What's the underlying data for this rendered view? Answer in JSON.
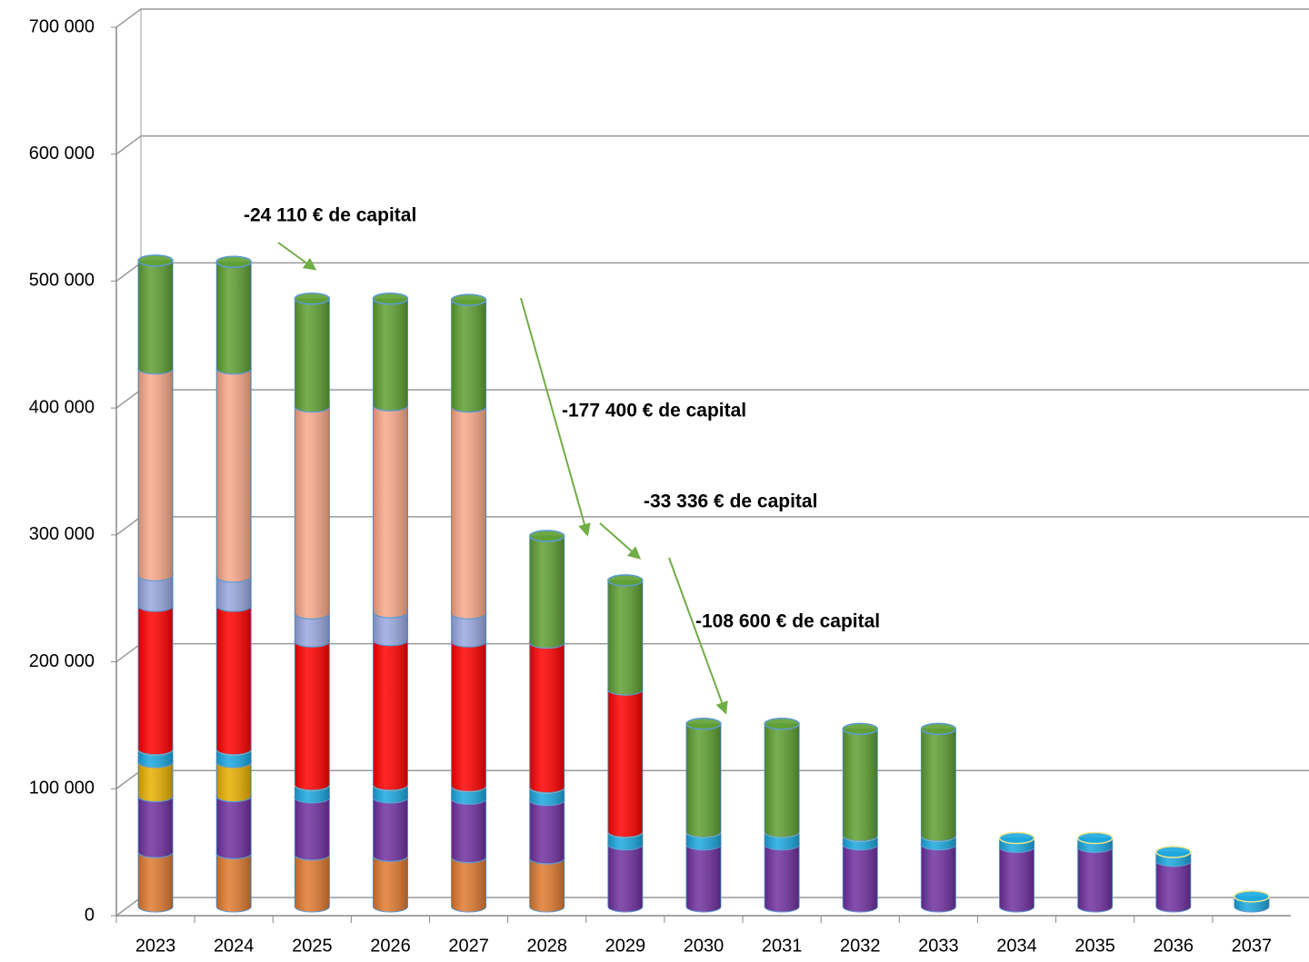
{
  "chart_data": {
    "type": "bar",
    "stacked": true,
    "categories": [
      "2023",
      "2024",
      "2025",
      "2026",
      "2027",
      "2028",
      "2029",
      "2030",
      "2031",
      "2032",
      "2033",
      "2034",
      "2035",
      "2036",
      "2037"
    ],
    "series": [
      {
        "color": "#e07a2f",
        "values": [
          43000,
          42000,
          41000,
          40000,
          39000,
          38000,
          0,
          0,
          0,
          0,
          0,
          0,
          0,
          0,
          0
        ]
      },
      {
        "color": "#7030a0",
        "values": [
          44000,
          45000,
          45000,
          46000,
          46000,
          46000,
          49000,
          49000,
          49000,
          49000,
          49000,
          47000,
          47000,
          36000,
          0
        ]
      },
      {
        "color": "#e8b000",
        "values": [
          27000,
          27000,
          0,
          0,
          0,
          0,
          0,
          0,
          0,
          0,
          0,
          0,
          0,
          0,
          0
        ]
      },
      {
        "color": "#1ba8e0",
        "values": [
          10000,
          10000,
          10000,
          10000,
          10000,
          10000,
          10000,
          10000,
          10000,
          7000,
          7000,
          7000,
          7000,
          7000,
          8000
        ]
      },
      {
        "color": "#ff0000",
        "values": [
          113000,
          113000,
          113000,
          114000,
          114000,
          114000,
          112000,
          0,
          0,
          0,
          0,
          0,
          0,
          0,
          0
        ]
      },
      {
        "color": "#9aa8e0",
        "values": [
          24000,
          23000,
          22000,
          22000,
          22000,
          0,
          0,
          0,
          0,
          0,
          0,
          0,
          0,
          0,
          0
        ]
      },
      {
        "color": "#f9a98a",
        "values": [
          163000,
          164000,
          163000,
          163000,
          163000,
          0,
          0,
          0,
          0,
          0,
          0,
          0,
          0,
          0,
          0
        ]
      },
      {
        "color": "#5fa032",
        "values": [
          85000,
          84000,
          85000,
          84000,
          84000,
          84000,
          86000,
          85000,
          85000,
          84000,
          84000,
          0,
          0,
          0,
          0
        ]
      }
    ],
    "ylim": [
      0,
      700000
    ],
    "yticks": [
      0,
      {
        "value": 100000,
        "label": "100 000"
      },
      {
        "value": 200000,
        "label": "200 000"
      },
      {
        "value": 300000,
        "label": "300 000"
      },
      {
        "value": 400000,
        "label": "400 000"
      },
      {
        "value": 500000,
        "label": "500 000"
      },
      {
        "value": 600000,
        "label": "600 000"
      },
      {
        "value": 700000,
        "label": "700 000"
      }
    ],
    "grid": true,
    "annotations": [
      "-24 110 € de capital",
      "-177 400 € de capital",
      "-33 336 € de capital",
      "-108 600 € de capital"
    ]
  }
}
